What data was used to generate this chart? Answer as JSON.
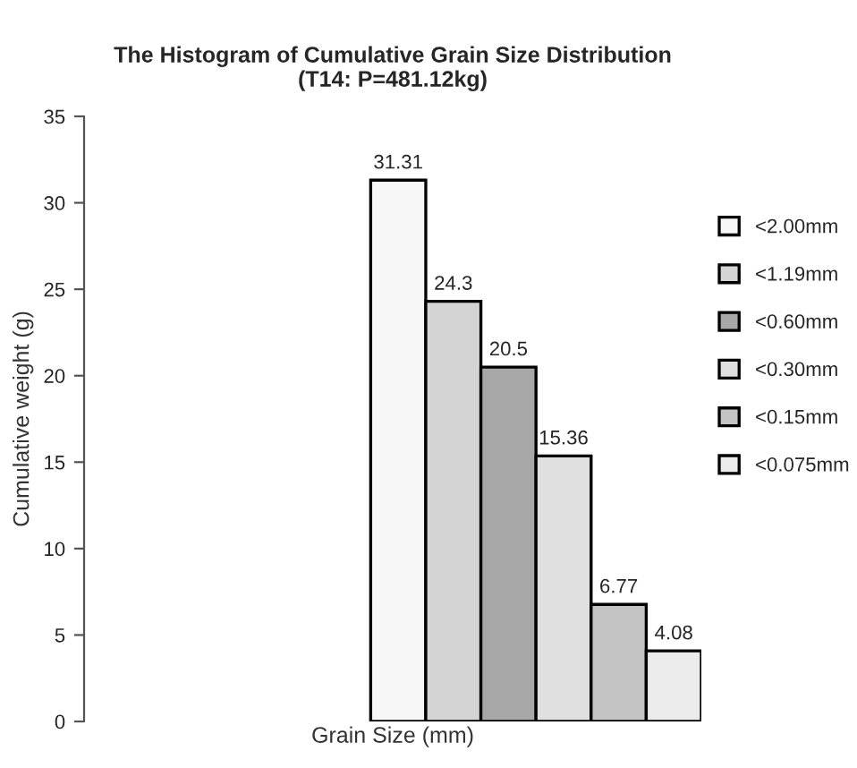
{
  "chart_data": {
    "type": "bar",
    "title": "The Histogram of Cumulative Grain Size Distribution\n(T14: P=481.12kg)",
    "xlabel": "Grain Size (mm)",
    "ylabel": "Cumulative weight (g)",
    "categories": [
      null
    ],
    "series": [
      {
        "name": "<2.00mm",
        "color": "#f7f7f7",
        "values": [
          31.31
        ]
      },
      {
        "name": "<1.19mm",
        "color": "#d4d4d4",
        "values": [
          24.3
        ]
      },
      {
        "name": "<0.60mm",
        "color": "#a8a8a8",
        "values": [
          20.5
        ]
      },
      {
        "name": "<0.30mm",
        "color": "#e0e0e0",
        "values": [
          15.36
        ]
      },
      {
        "name": "<0.15mm",
        "color": "#c4c4c4",
        "values": [
          6.77
        ]
      },
      {
        "name": "<0.075mm",
        "color": "#ebebeb",
        "values": [
          4.08
        ]
      }
    ],
    "ylim": [
      0,
      35
    ],
    "yticks": [
      0,
      5,
      10,
      15,
      20,
      25,
      30,
      35
    ],
    "data_labels": true,
    "legend": "right",
    "grid": false
  }
}
